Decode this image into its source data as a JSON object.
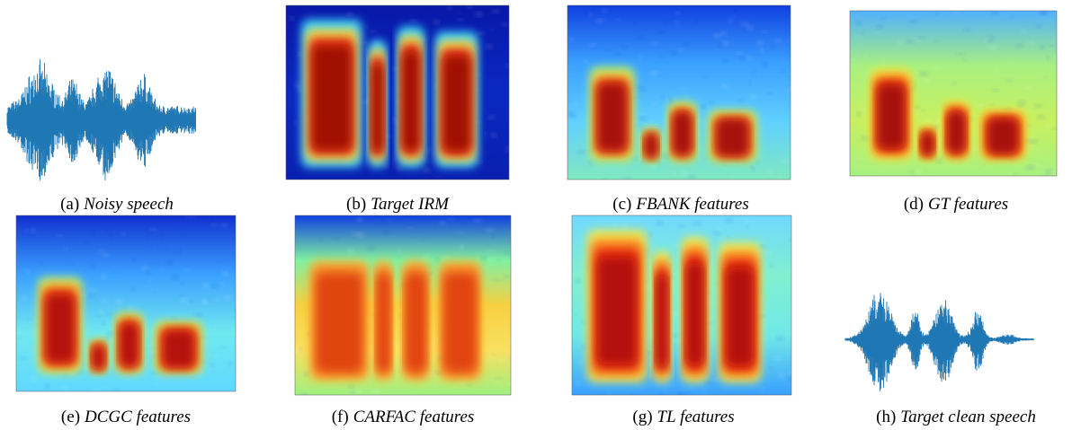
{
  "panels": [
    {
      "label": "(a)",
      "title": "Noisy speech"
    },
    {
      "label": "(b)",
      "title": "Target IRM"
    },
    {
      "label": "(c)",
      "title": "FBANK features"
    },
    {
      "label": "(d)",
      "title": "GT features"
    },
    {
      "label": "(e)",
      "title": "DCGC features"
    },
    {
      "label": "(f)",
      "title": "CARFAC features"
    },
    {
      "label": "(g)",
      "title": "TL features"
    },
    {
      "label": "(h)",
      "title": "Target clean speech"
    }
  ]
}
